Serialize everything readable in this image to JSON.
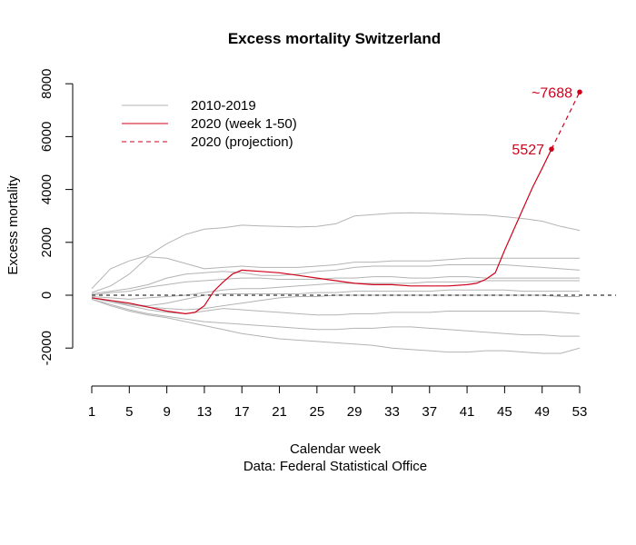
{
  "chart_data": {
    "type": "line",
    "title": "Excess mortality Switzerland",
    "xlabel": "Calendar week",
    "caption": "Data: Federal Statistical Office",
    "ylabel": "Excess mortality",
    "xlim": [
      1,
      53
    ],
    "ylim": [
      -3000,
      8500
    ],
    "xticks": [
      1,
      5,
      9,
      13,
      17,
      21,
      25,
      29,
      33,
      37,
      41,
      45,
      49,
      53
    ],
    "yticks": [
      -2000,
      0,
      2000,
      4000,
      6000,
      8000
    ],
    "reference_line": 0,
    "legend": {
      "placement": "top-left",
      "entries": [
        {
          "label": "2010-2019",
          "color": "#b3b3b3",
          "dash": false
        },
        {
          "label": "2020 (week 1-50)",
          "color": "#d0021b",
          "dash": false
        },
        {
          "label": "2020 (projection)",
          "color": "#d0021b",
          "dash": true
        }
      ]
    },
    "background_series": [
      {
        "x": [
          1,
          3,
          5,
          7,
          9,
          11,
          13,
          15,
          17,
          19,
          21,
          23,
          25,
          27,
          29,
          31,
          33,
          35,
          37,
          39,
          41,
          43,
          45,
          47,
          49,
          51,
          53
        ],
        "values": [
          250,
          1000,
          1300,
          1500,
          1950,
          2300,
          2500,
          2550,
          2650,
          2620,
          2600,
          2580,
          2600,
          2700,
          3000,
          3050,
          3100,
          3120,
          3100,
          3080,
          3050,
          3030,
          2970,
          2900,
          2800,
          2600,
          2450
        ]
      },
      {
        "x": [
          1,
          3,
          5,
          7,
          9,
          11,
          13,
          15,
          17,
          19,
          21,
          23,
          25,
          27,
          29,
          31,
          33,
          35,
          37,
          39,
          41,
          43,
          45,
          47,
          49,
          51,
          53
        ],
        "values": [
          100,
          350,
          800,
          1450,
          1400,
          1200,
          1000,
          1050,
          1100,
          1050,
          1050,
          1050,
          1100,
          1150,
          1250,
          1250,
          1300,
          1300,
          1300,
          1350,
          1400,
          1400,
          1400,
          1400,
          1400,
          1400,
          1400
        ]
      },
      {
        "x": [
          1,
          3,
          5,
          7,
          9,
          11,
          13,
          15,
          17,
          19,
          21,
          23,
          25,
          27,
          29,
          31,
          33,
          35,
          37,
          39,
          41,
          43,
          45,
          47,
          49,
          51,
          53
        ],
        "values": [
          50,
          150,
          250,
          400,
          650,
          800,
          850,
          900,
          850,
          750,
          750,
          800,
          900,
          950,
          1050,
          1100,
          1100,
          1100,
          1100,
          1150,
          1150,
          1150,
          1150,
          1100,
          1050,
          1000,
          950
        ]
      },
      {
        "x": [
          1,
          3,
          5,
          7,
          9,
          11,
          13,
          15,
          17,
          19,
          21,
          23,
          25,
          27,
          29,
          31,
          33,
          35,
          37,
          39,
          41,
          43,
          45,
          47,
          49,
          51,
          53
        ],
        "values": [
          0,
          100,
          150,
          300,
          400,
          500,
          550,
          600,
          650,
          650,
          600,
          600,
          600,
          650,
          650,
          700,
          700,
          650,
          650,
          700,
          700,
          650,
          650,
          650,
          650,
          650,
          650
        ]
      },
      {
        "x": [
          1,
          3,
          5,
          7,
          9,
          11,
          13,
          15,
          17,
          19,
          21,
          23,
          25,
          27,
          29,
          31,
          33,
          35,
          37,
          39,
          41,
          43,
          45,
          47,
          49,
          51,
          53
        ],
        "values": [
          -50,
          -100,
          -150,
          -100,
          -50,
          0,
          100,
          200,
          250,
          250,
          300,
          350,
          400,
          450,
          450,
          450,
          450,
          450,
          500,
          500,
          500,
          550,
          550,
          550,
          550,
          550,
          550
        ]
      },
      {
        "x": [
          1,
          3,
          5,
          7,
          9,
          11,
          13,
          15,
          17,
          19,
          21,
          23,
          25,
          27,
          29,
          31,
          33,
          35,
          37,
          39,
          41,
          43,
          45,
          47,
          49,
          51,
          53
        ],
        "values": [
          -100,
          -250,
          -350,
          -400,
          -300,
          -150,
          0,
          50,
          50,
          50,
          50,
          50,
          100,
          100,
          150,
          150,
          150,
          150,
          150,
          200,
          200,
          200,
          200,
          150,
          150,
          150,
          150
        ]
      },
      {
        "x": [
          1,
          3,
          5,
          7,
          9,
          11,
          13,
          15,
          17,
          19,
          21,
          23,
          25,
          27,
          29,
          31,
          33,
          35,
          37,
          39,
          41,
          43,
          45,
          47,
          49,
          51,
          53
        ],
        "values": [
          -100,
          -200,
          -350,
          -450,
          -500,
          -550,
          -500,
          -400,
          -300,
          -200,
          -100,
          -50,
          -50,
          0,
          0,
          0,
          0,
          0,
          0,
          0,
          0,
          0,
          0,
          0,
          0,
          -50,
          -50
        ]
      },
      {
        "x": [
          1,
          3,
          5,
          7,
          9,
          11,
          13,
          15,
          17,
          19,
          21,
          23,
          25,
          27,
          29,
          31,
          33,
          35,
          37,
          39,
          41,
          43,
          45,
          47,
          49,
          51,
          53
        ],
        "values": [
          -100,
          -250,
          -400,
          -550,
          -650,
          -700,
          -600,
          -500,
          -550,
          -600,
          -650,
          -700,
          -750,
          -750,
          -700,
          -700,
          -650,
          -650,
          -650,
          -600,
          -600,
          -600,
          -600,
          -600,
          -600,
          -650,
          -700
        ]
      },
      {
        "x": [
          1,
          3,
          5,
          7,
          9,
          11,
          13,
          15,
          17,
          19,
          21,
          23,
          25,
          27,
          29,
          31,
          33,
          35,
          37,
          39,
          41,
          43,
          45,
          47,
          49,
          51,
          53
        ],
        "values": [
          -150,
          -350,
          -550,
          -700,
          -800,
          -900,
          -1000,
          -1050,
          -1100,
          -1150,
          -1200,
          -1250,
          -1300,
          -1300,
          -1250,
          -1250,
          -1200,
          -1200,
          -1250,
          -1300,
          -1350,
          -1400,
          -1450,
          -1500,
          -1500,
          -1550,
          -1550
        ]
      },
      {
        "x": [
          1,
          3,
          5,
          7,
          9,
          11,
          13,
          15,
          17,
          19,
          21,
          23,
          25,
          27,
          29,
          31,
          33,
          35,
          37,
          39,
          41,
          43,
          45,
          47,
          49,
          51,
          53
        ],
        "values": [
          -150,
          -400,
          -600,
          -750,
          -850,
          -1000,
          -1150,
          -1300,
          -1450,
          -1550,
          -1650,
          -1700,
          -1750,
          -1800,
          -1850,
          -1900,
          -2000,
          -2050,
          -2100,
          -2150,
          -2150,
          -2100,
          -2100,
          -2150,
          -2200,
          -2200,
          -2000
        ]
      }
    ],
    "series_2020": {
      "x": [
        1,
        3,
        5,
        7,
        9,
        11,
        12,
        13,
        14,
        15,
        16,
        17,
        19,
        21,
        23,
        25,
        27,
        29,
        31,
        33,
        35,
        37,
        39,
        41,
        42,
        43,
        44,
        45,
        46,
        47,
        48,
        49,
        50
      ],
      "values": [
        -100,
        -200,
        -300,
        -450,
        -600,
        -700,
        -650,
        -400,
        150,
        500,
        800,
        950,
        900,
        850,
        750,
        650,
        550,
        450,
        400,
        400,
        350,
        350,
        350,
        400,
        450,
        600,
        850,
        1700,
        2500,
        3300,
        4100,
        4800,
        5527
      ]
    },
    "projection": {
      "x": [
        50,
        53
      ],
      "values": [
        5527,
        7688
      ]
    },
    "annotations": [
      {
        "x": 50,
        "y": 5527,
        "label": "5527"
      },
      {
        "x": 53,
        "y": 7688,
        "label": "~7688"
      }
    ]
  }
}
